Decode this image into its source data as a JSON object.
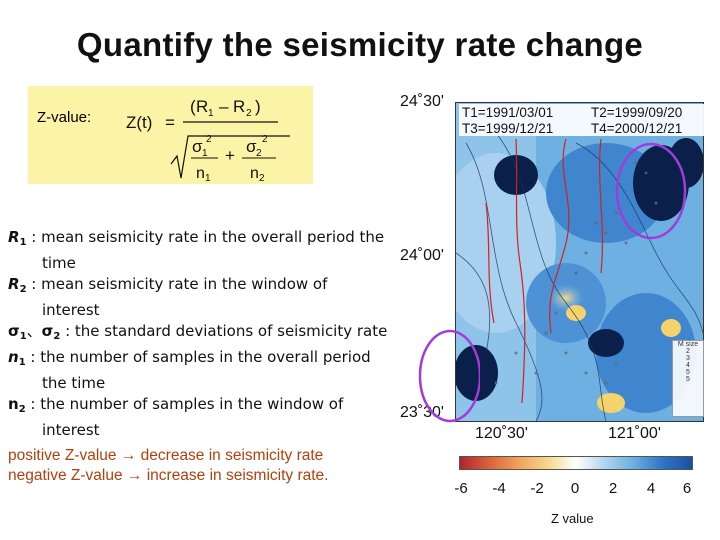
{
  "title": "Quantify the seismicity rate change",
  "formula": {
    "label": "Z-value:",
    "lhs": "Z(t)",
    "eq": "=",
    "R1": "R",
    "R1_sub": "1",
    "minus": "–",
    "R2": "R",
    "R2_sub": "2",
    "sigma1": "σ",
    "sigma1_sub": "1",
    "sigma2": "σ",
    "sigma2_sub": "2",
    "sq": "2",
    "plus": "+",
    "n1": "n",
    "n1_sub": "1",
    "n2": "n",
    "n2_sub": "2"
  },
  "definitions": [
    {
      "symbol": "R",
      "sub": "1",
      "text": " : mean seismicity rate in the overall period the",
      "cont": "time"
    },
    {
      "symbol": "R",
      "sub": "2",
      "text": " : mean seismicity rate in the window of",
      "cont": "interest"
    },
    {
      "symbol": "σ",
      "sub": "1",
      "text": "、",
      "symbol2": "σ",
      "sub2": "2",
      "text2": " : the standard deviations of seismicity rate"
    },
    {
      "symbol": "n",
      "sub": "1",
      "text": " : the number of samples in the overall period",
      "cont": "the time"
    },
    {
      "symbol": "n",
      "sub": "2",
      "text": " : the number of samples in the window of",
      "cont": "interest"
    }
  ],
  "interpretation": [
    {
      "before": "positive Z-value ",
      "arrow": "→",
      "after": " decrease in seismicity rate"
    },
    {
      "before": "negative Z-value ",
      "arrow": "→",
      "after": " increase in seismicity rate."
    }
  ],
  "map": {
    "lat_labels": [
      "24˚30'",
      "24˚00'",
      "23˚30'"
    ],
    "lon_labels": [
      "120˚30'",
      "121˚00'"
    ],
    "time_info": [
      "T1=1991/03/01",
      "T2=1999/09/20",
      "T3=1999/12/21",
      "T4=2000/12/21"
    ],
    "legend_title": "M size",
    "legend_items": [
      "2",
      "3",
      "4",
      "5",
      "5"
    ],
    "colors": {
      "high": "#1a4fa0",
      "mid": "#6aaee0",
      "low": "#f6d98a",
      "circle": "#a23bd8"
    }
  },
  "colorbar": {
    "ticks": [
      "-6",
      "-4",
      "-2",
      "0",
      "2",
      "4",
      "6"
    ],
    "label": "Z value"
  }
}
